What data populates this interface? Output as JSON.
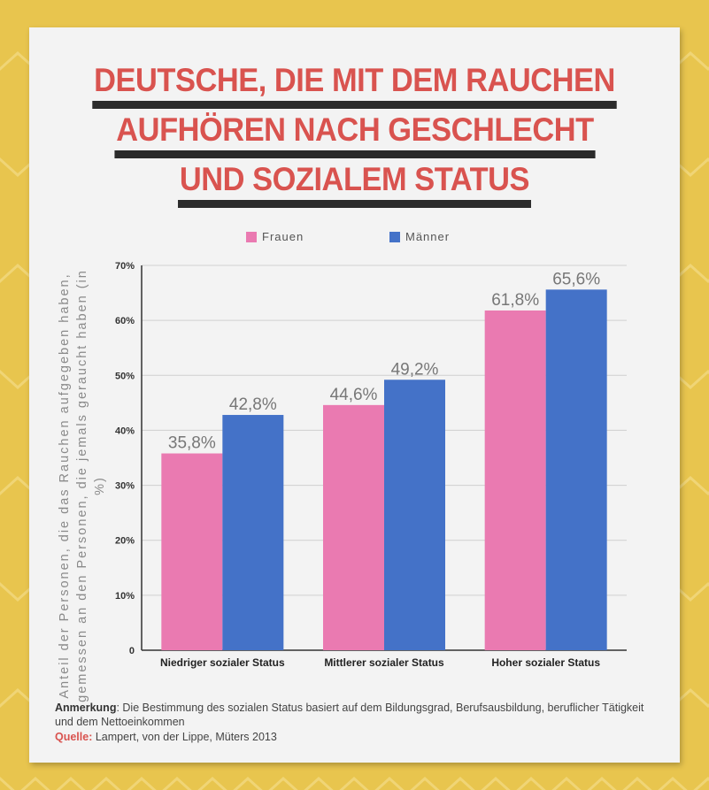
{
  "title_lines": [
    "DEUTSCHE, DIE MIT DEM RAUCHEN",
    "AUFHÖREN NACH GESCHLECHT",
    "UND SOZIALEM STATUS"
  ],
  "colors": {
    "background": "#e8c54e",
    "title": "#d9534f",
    "underline": "#2b2b2b",
    "frauen": "#ea7ab1",
    "maenner": "#4472c8"
  },
  "chart_data": {
    "type": "bar",
    "categories": [
      "Niedriger sozialer Status",
      "Mittlerer sozialer Status",
      "Hoher sozialer Status"
    ],
    "series": [
      {
        "name": "Frauen",
        "values": [
          35.8,
          44.6,
          61.8
        ],
        "labels": [
          "35,8%",
          "44,6%",
          "61,8%"
        ]
      },
      {
        "name": "Männer",
        "values": [
          42.8,
          49.2,
          65.6
        ],
        "labels": [
          "42,8%",
          "49,2%",
          "65,6%"
        ]
      }
    ],
    "ylim": [
      0,
      70
    ],
    "yticks": [
      0,
      10,
      20,
      30,
      40,
      50,
      60,
      70
    ],
    "ytick_labels": [
      "0",
      "10%",
      "20%",
      "30%",
      "40%",
      "50%",
      "60%",
      "70%"
    ],
    "ylabel": "Anteil der Personen, die das Rauchen aufgegeben haben, gemessen an den Personen, die jemals geraucht haben (in %)",
    "xlabel": "",
    "legend": "top-center"
  },
  "note": {
    "label": "Anmerkung",
    "text": ": Die Bestimmung des sozialen Status basiert auf dem Bildungsgrad, Berufsausbildung, beruflicher Tätigkeit und dem Nettoeinkommen"
  },
  "source": {
    "label": "Quelle:",
    "text": " Lampert, von der Lippe, Müters 2013"
  }
}
